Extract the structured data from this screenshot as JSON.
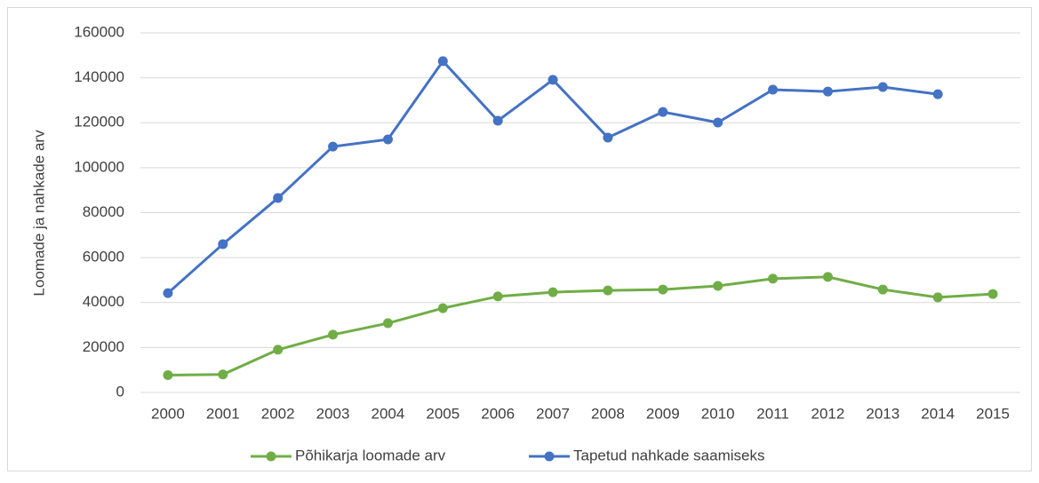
{
  "chart_data": {
    "type": "line",
    "ylabel": "Loomade ja nahkade arv",
    "categories": [
      "2000",
      "2001",
      "2002",
      "2003",
      "2004",
      "2005",
      "2006",
      "2007",
      "2008",
      "2009",
      "2010",
      "2011",
      "2012",
      "2013",
      "2014",
      "2015"
    ],
    "series": [
      {
        "name": "Põhikarja loomade arv",
        "color": "#70ad47",
        "values": [
          7700,
          8000,
          19000,
          25700,
          30800,
          37500,
          42700,
          44600,
          45400,
          45800,
          47400,
          50600,
          51400,
          45800,
          42300,
          43800
        ]
      },
      {
        "name": "Tapetud nahkade saamiseks",
        "color": "#4472c4",
        "values": [
          44200,
          66000,
          86500,
          109400,
          112600,
          147400,
          120900,
          139100,
          113400,
          124800,
          120100,
          134700,
          133900,
          135900,
          132700,
          null
        ]
      }
    ],
    "ylim": [
      0,
      160000
    ],
    "yticks": [
      0,
      20000,
      40000,
      60000,
      80000,
      100000,
      120000,
      140000,
      160000
    ],
    "grid": true,
    "legend": "bottom"
  }
}
